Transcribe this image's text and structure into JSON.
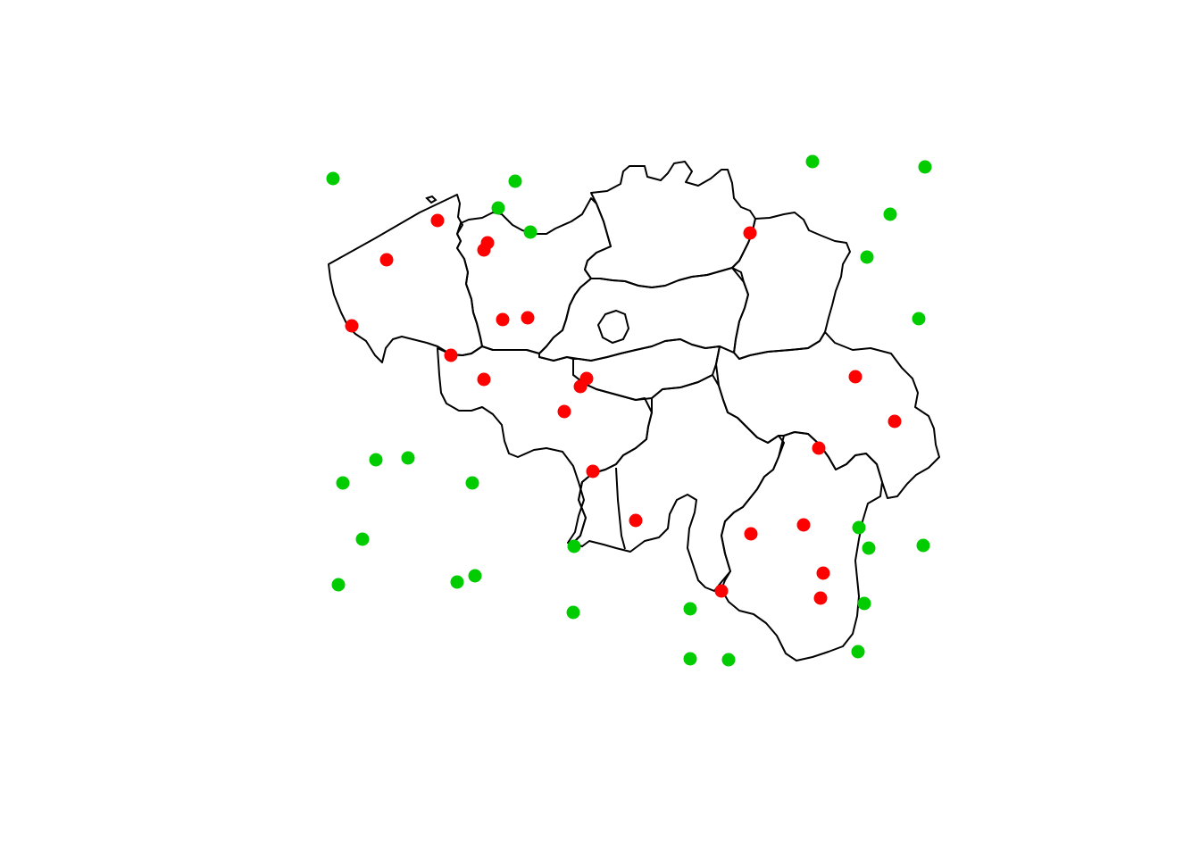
{
  "colors": {
    "background": "#ffffff",
    "outline": "#000000",
    "inside_points": "#ff0000",
    "outside_points": "#00cc00"
  },
  "map": {
    "country": "Belgium",
    "regions": [
      "west-flanders",
      "east-flanders",
      "antwerp",
      "limburg",
      "flemish-brabant",
      "brussels",
      "hainaut",
      "walloon-brabant",
      "namur",
      "liege",
      "luxembourg"
    ]
  },
  "points": {
    "inside": [
      {
        "name": "red-point-1"
      },
      {
        "name": "red-point-2"
      },
      {
        "name": "red-point-3"
      },
      {
        "name": "red-point-4"
      },
      {
        "name": "red-point-5"
      },
      {
        "name": "red-point-6"
      },
      {
        "name": "red-point-7"
      },
      {
        "name": "red-point-8"
      },
      {
        "name": "red-point-9"
      },
      {
        "name": "red-point-10"
      },
      {
        "name": "red-point-11"
      },
      {
        "name": "red-point-12"
      },
      {
        "name": "red-point-13"
      },
      {
        "name": "red-point-14"
      },
      {
        "name": "red-point-15"
      },
      {
        "name": "red-point-16"
      },
      {
        "name": "red-point-17"
      },
      {
        "name": "red-point-18"
      },
      {
        "name": "red-point-19"
      },
      {
        "name": "red-point-20"
      },
      {
        "name": "red-point-21"
      },
      {
        "name": "red-point-22"
      },
      {
        "name": "red-point-23"
      }
    ],
    "outside": [
      {
        "name": "green-point-1"
      },
      {
        "name": "green-point-2"
      },
      {
        "name": "green-point-3"
      },
      {
        "name": "green-point-4"
      },
      {
        "name": "green-point-5"
      },
      {
        "name": "green-point-6"
      },
      {
        "name": "green-point-7"
      },
      {
        "name": "green-point-8"
      },
      {
        "name": "green-point-9"
      },
      {
        "name": "green-point-10"
      },
      {
        "name": "green-point-11"
      },
      {
        "name": "green-point-12"
      },
      {
        "name": "green-point-13"
      },
      {
        "name": "green-point-14"
      },
      {
        "name": "green-point-15"
      },
      {
        "name": "green-point-16"
      },
      {
        "name": "green-point-17"
      },
      {
        "name": "green-point-18"
      },
      {
        "name": "green-point-19"
      },
      {
        "name": "green-point-20"
      },
      {
        "name": "green-point-21"
      },
      {
        "name": "green-point-22"
      },
      {
        "name": "green-point-23"
      },
      {
        "name": "green-point-24"
      },
      {
        "name": "green-point-25"
      },
      {
        "name": "green-point-26"
      },
      {
        "name": "green-point-27"
      }
    ]
  }
}
